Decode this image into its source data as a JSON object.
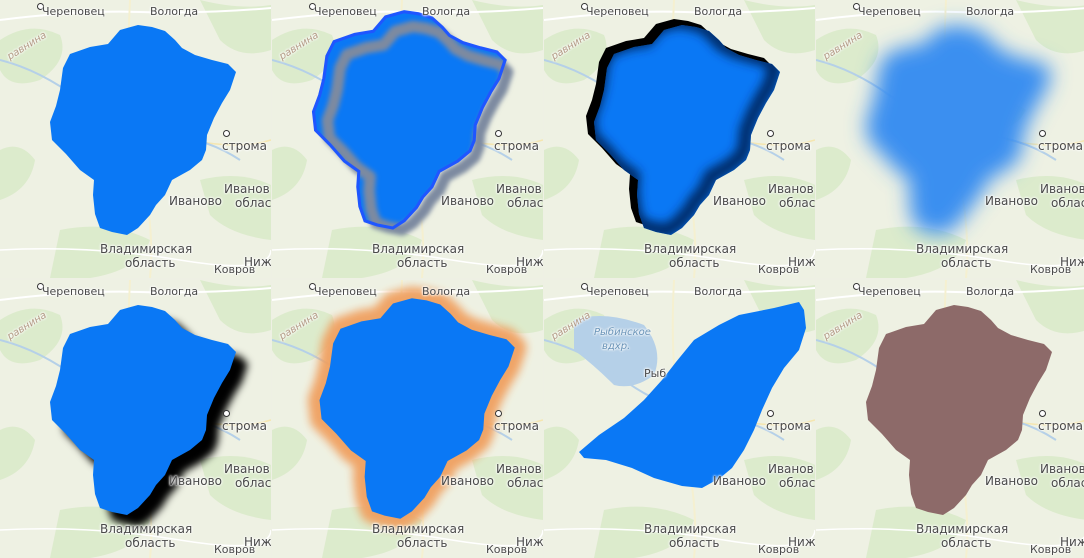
{
  "labels": {
    "cherepovets": "Череповец",
    "vologda": "Вологда",
    "ravnina": "равнина",
    "ryb": "Рыб",
    "kostroma": "Кострома",
    "stroma": "строма",
    "ivanovo": "Иваново",
    "ivanovo_obl_1": "Иванов",
    "ivanovo_obl_2": "облас",
    "vlad_1": "Владимирская",
    "vlad_2": "область",
    "kovrov": "Ковров",
    "nizh": "Ниж",
    "rybinskoe_1": "Рыбинское",
    "rybinskoe_2": "вдхр."
  },
  "tiles": [
    {
      "style": "plain-fill"
    },
    {
      "style": "inner-glow-outline"
    },
    {
      "style": "inner-shadow"
    },
    {
      "style": "blur"
    },
    {
      "style": "drop-shadow"
    },
    {
      "style": "outer-glow"
    },
    {
      "style": "transformed-skew"
    },
    {
      "style": "brown-fill"
    }
  ],
  "colors": {
    "fill_blue": "#0a78f5",
    "fill_brown": "#8d6a69",
    "glow_orange": "#f0a060",
    "outline_gray": "#7d8aa0",
    "water": "#b5d0e8",
    "forest": "#d6e8c4",
    "map_bg": "#eef1e3"
  }
}
